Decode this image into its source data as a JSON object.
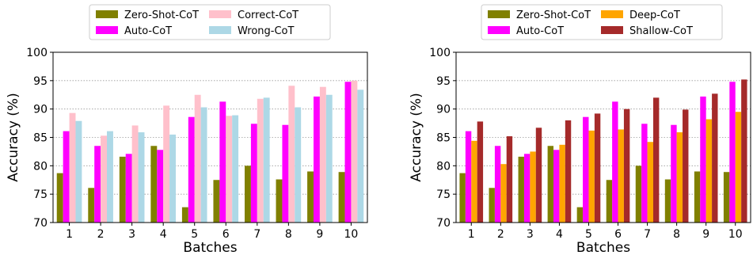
{
  "chart_data": [
    {
      "type": "bar",
      "title": "",
      "xlabel": "Batches",
      "ylabel": "Accuracy (%)",
      "ylim": [
        70,
        100
      ],
      "yticks": [
        70,
        75,
        80,
        85,
        90,
        95,
        100
      ],
      "grid": "horizontal dotted",
      "legend_position": "top (above plot), 2 columns",
      "categories": [
        "1",
        "2",
        "3",
        "4",
        "5",
        "6",
        "7",
        "8",
        "9",
        "10"
      ],
      "series": [
        {
          "name": "Zero-Shot-CoT",
          "color": "#808000",
          "values": [
            78.7,
            76.1,
            81.6,
            83.5,
            72.7,
            77.5,
            80.0,
            77.6,
            79.0,
            78.9
          ]
        },
        {
          "name": "Auto-CoT",
          "color": "#ff00ff",
          "values": [
            86.1,
            83.5,
            82.1,
            82.8,
            88.6,
            91.3,
            87.4,
            87.2,
            92.2,
            94.8
          ]
        },
        {
          "name": "Correct-CoT",
          "color": "#ffc0cb",
          "values": [
            89.3,
            85.3,
            87.1,
            90.6,
            92.5,
            88.8,
            91.8,
            94.1,
            93.9,
            95.0
          ]
        },
        {
          "name": "Wrong-CoT",
          "color": "#add8e6",
          "values": [
            87.9,
            86.1,
            85.9,
            85.5,
            90.3,
            88.9,
            92.0,
            90.3,
            92.5,
            93.4
          ]
        }
      ]
    },
    {
      "type": "bar",
      "title": "",
      "xlabel": "Batches",
      "ylabel": "Accuracy (%)",
      "ylim": [
        70,
        100
      ],
      "yticks": [
        70,
        75,
        80,
        85,
        90,
        95,
        100
      ],
      "grid": "horizontal dotted",
      "legend_position": "top (above plot), 2 columns",
      "categories": [
        "1",
        "2",
        "3",
        "4",
        "5",
        "6",
        "7",
        "8",
        "9",
        "10"
      ],
      "series": [
        {
          "name": "Zero-Shot-CoT",
          "color": "#808000",
          "values": [
            78.7,
            76.1,
            81.6,
            83.5,
            72.7,
            77.5,
            80.0,
            77.6,
            79.0,
            78.9
          ]
        },
        {
          "name": "Auto-CoT",
          "color": "#ff00ff",
          "values": [
            86.1,
            83.5,
            82.1,
            82.8,
            88.6,
            91.3,
            87.4,
            87.2,
            92.2,
            94.8
          ]
        },
        {
          "name": "Deep-CoT",
          "color": "#ffa500",
          "values": [
            84.4,
            80.3,
            82.5,
            83.7,
            86.2,
            86.4,
            84.2,
            85.9,
            88.2,
            89.5
          ]
        },
        {
          "name": "Shallow-CoT",
          "color": "#a52a2a",
          "values": [
            87.8,
            85.2,
            86.7,
            88.0,
            89.2,
            90.0,
            92.0,
            89.9,
            92.7,
            95.2
          ]
        }
      ]
    }
  ]
}
